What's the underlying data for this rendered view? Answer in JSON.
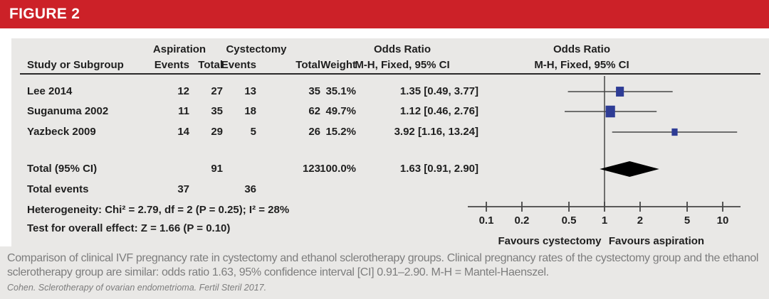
{
  "figure_label": "FIGURE 2",
  "colors": {
    "header_red": "#cc2128",
    "panel_gray": "#e9e8e6",
    "marker_blue": "#2e3c95",
    "line_gray": "#454545",
    "diamond_black": "#000000",
    "caption_gray": "#7d7d7d"
  },
  "table": {
    "group1_header": "Aspiration",
    "group2_header": "Cystectomy",
    "or_header": "Odds Ratio",
    "or_subheader": "M-H, Fixed, 95% CI",
    "plot_header": "Odds Ratio",
    "plot_subheader": "M-H, Fixed, 95% CI",
    "col_study": "Study or Subgroup",
    "col_events": "Events",
    "col_total": "Total",
    "col_weight": "Weight",
    "rows": [
      {
        "study": "Lee 2014",
        "e1": "12",
        "t1": "27",
        "e2": "13",
        "t2": "35",
        "weight": "35.1%",
        "or_text": "1.35 [0.49, 3.77]"
      },
      {
        "study": "Suganuma 2002",
        "e1": "11",
        "t1": "35",
        "e2": "18",
        "t2": "62",
        "weight": "49.7%",
        "or_text": "1.12 [0.46, 2.76]"
      },
      {
        "study": "Yazbeck 2009",
        "e1": "14",
        "t1": "29",
        "e2": "5",
        "t2": "26",
        "weight": "15.2%",
        "or_text": "3.92 [1.16, 13.24]"
      }
    ],
    "total_row": {
      "label": "Total (95% CI)",
      "t1": "91",
      "t2": "123",
      "weight": "100.0%",
      "or_text": "1.63 [0.91, 2.90]"
    },
    "total_events_row": {
      "label": "Total events",
      "e1": "37",
      "e2": "36"
    },
    "heterogeneity": "Heterogeneity: Chi² = 2.79, df = 2 (P = 0.25); I² = 28%",
    "overall_effect": "Test for overall effect: Z = 1.66 (P = 0.10)"
  },
  "chart_data": {
    "type": "forest",
    "x_scale": "log",
    "axis_ticks": [
      0.1,
      0.2,
      0.5,
      1,
      2,
      5,
      10
    ],
    "xlim": [
      0.07,
      14
    ],
    "null_line": 1,
    "studies": [
      {
        "name": "Lee 2014",
        "or": 1.35,
        "ci_low": 0.49,
        "ci_high": 3.77,
        "weight_pct": 35.1
      },
      {
        "name": "Suganuma 2002",
        "or": 1.12,
        "ci_low": 0.46,
        "ci_high": 2.76,
        "weight_pct": 49.7
      },
      {
        "name": "Yazbeck 2009",
        "or": 3.92,
        "ci_low": 1.16,
        "ci_high": 13.24,
        "weight_pct": 15.2
      }
    ],
    "total": {
      "or": 1.63,
      "ci_low": 0.91,
      "ci_high": 2.9
    },
    "favours_left": "Favours cystectomy",
    "favours_right": "Favours aspiration",
    "legend_position": "below-axis"
  },
  "caption": {
    "text": "Comparison of clinical IVF pregnancy rate in cystectomy and ethanol sclerotherapy groups. Clinical pregnancy rates of the cystectomy group and the ethanol sclerotherapy group are similar: odds ratio 1.63, 95% confidence interval [CI] 0.91–2.90. M-H = Mantel-Haenszel.",
    "attribution": "Cohen. Sclerotherapy of ovarian endometrioma. Fertil Steril 2017."
  }
}
